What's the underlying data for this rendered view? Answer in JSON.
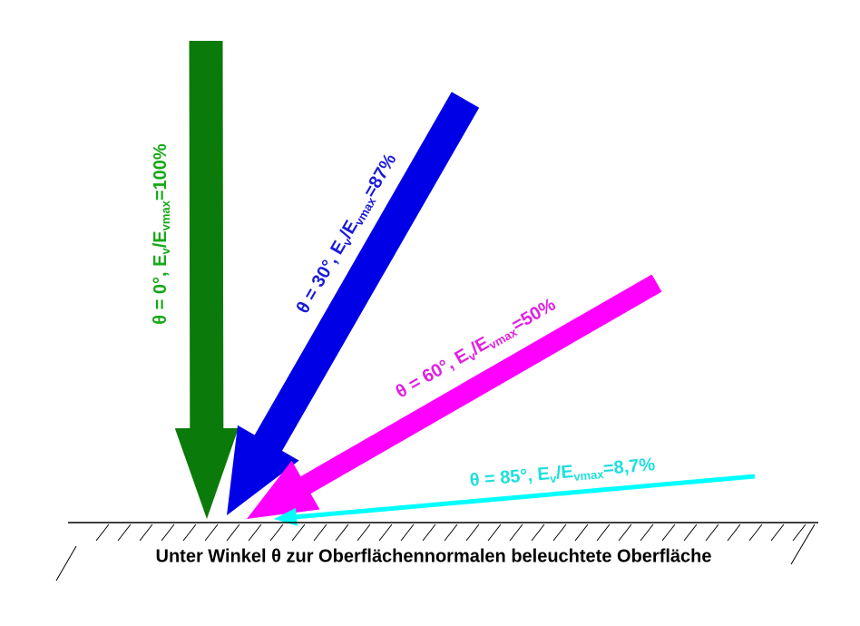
{
  "arrows": [
    {
      "prefix": "θ = 0°, E",
      "sub1": "v",
      "mid": "/E",
      "sub2": "vmax",
      "suffix": "=100%"
    },
    {
      "prefix": "θ = 30°, E",
      "sub1": "v",
      "mid": "/E",
      "sub2": "vmax",
      "suffix": "=87%"
    },
    {
      "prefix": "θ = 60°, E",
      "sub1": "v",
      "mid": "/E",
      "sub2": "vmax",
      "suffix": "=50%"
    },
    {
      "prefix": "θ = 85°, E",
      "sub1": "v",
      "mid": "/E",
      "sub2": "vmax",
      "suffix": "=8,7%"
    }
  ],
  "caption": "Unter Winkel θ zur Oberflächennormalen beleuchtete Oberfläche"
}
